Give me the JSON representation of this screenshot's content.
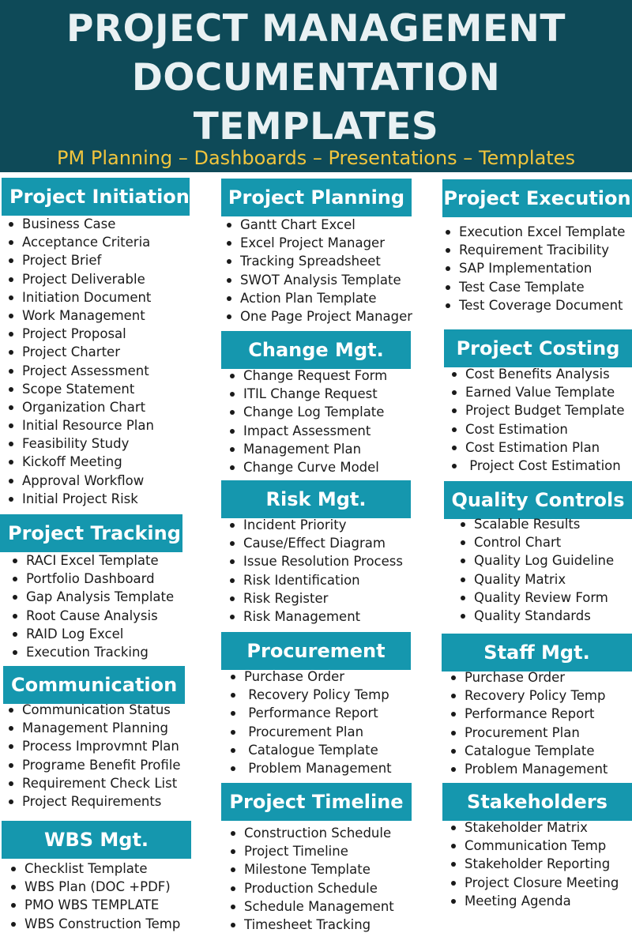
{
  "header": {
    "title_line1": "PROJECT MANAGEMENT",
    "title_line2": "DOCUMENTATION",
    "title_line3": "TEMPLATES",
    "subtitle": "PM Planning – Dashboards – Presentations – Templates"
  },
  "sections": {
    "project_initiation": {
      "title": "Project Initiation",
      "items": [
        "Business Case",
        "Acceptance Criteria",
        "Project Brief",
        "Project Deliverable",
        "Initiation Document",
        "Work Management",
        "Project Proposal",
        "Project Charter",
        "Project Assessment",
        "Scope Statement",
        "Organization Chart",
        "Initial Resource Plan",
        "Feasibility Study",
        "Kickoff Meeting",
        "Approval Workflow",
        "Initial Project Risk"
      ]
    },
    "project_tracking": {
      "title": "Project Tracking",
      "items": [
        "RACI Excel Template",
        "Portfolio Dashboard",
        "Gap Analysis Template",
        "Root Cause Analysis",
        "RAID Log Excel",
        "Execution Tracking"
      ]
    },
    "communication": {
      "title": "Communication",
      "items": [
        "Communication Status",
        "Management Planning",
        "Process Improvmnt Plan",
        "Programe Benefit Profile",
        "Requirement Check List",
        "Project Requirements"
      ]
    },
    "wbs_mgt": {
      "title": "WBS Mgt.",
      "items": [
        "Checklist Template",
        "WBS Plan (DOC +PDF)",
        "PMO WBS TEMPLATE",
        "WBS Construction Temp"
      ]
    },
    "project_planning": {
      "title": "Project Planning",
      "items": [
        "Gantt Chart Excel",
        "Excel Project Manager",
        "Tracking Spreadsheet",
        "SWOT Analysis Template",
        "Action Plan Template",
        "One Page Project Manager"
      ]
    },
    "change_mgt": {
      "title": "Change Mgt.",
      "items": [
        "Change Request Form",
        "ITIL Change Request",
        "Change Log Template",
        "Impact Assessment",
        "Management Plan",
        "Change Curve Model"
      ]
    },
    "risk_mgt": {
      "title": "Risk Mgt.",
      "items": [
        "Incident Priority",
        "Cause/Effect Diagram",
        "Issue Resolution Process",
        "Risk Identification",
        "Risk Register",
        "Risk Management"
      ]
    },
    "procurement": {
      "title": "Procurement",
      "items": [
        "Purchase Order",
        " Recovery Policy Temp",
        " Performance Report",
        " Procurement Plan",
        " Catalogue Template",
        " Problem Management"
      ]
    },
    "project_timeline": {
      "title": "Project Timeline",
      "items": [
        "Construction Schedule",
        "Project Timeline",
        "Milestone Template",
        "Production Schedule",
        "Schedule Management",
        "Timesheet Tracking"
      ]
    },
    "project_execution": {
      "title": "Project Execution",
      "items": [
        "Execution Excel Template",
        "Requirement Tracibility",
        "SAP Implementation",
        "Test Case Template",
        "Test Coverage Document"
      ]
    },
    "project_costing": {
      "title": "Project Costing",
      "items": [
        "Cost Benefits Analysis",
        "Earned Value Template",
        "Project Budget Template",
        "Cost Estimation",
        "Cost Estimation Plan",
        " Project Cost Estimation"
      ]
    },
    "quality_controls": {
      "title": "Quality Controls",
      "items": [
        "Scalable Results",
        "Control Chart",
        "Quality Log Guideline",
        "Quality Matrix",
        "Quality Review Form",
        "Quality Standards"
      ]
    },
    "staff_mgt": {
      "title": "Staff Mgt.",
      "items": [
        "Purchase Order",
        "Recovery Policy Temp",
        "Performance Report",
        "Procurement Plan",
        "Catalogue Template",
        "Problem Management"
      ]
    },
    "stakeholders": {
      "title": "Stakeholders",
      "items": [
        "Stakeholder Matrix",
        "Communication Temp",
        "Stakeholder Reporting",
        "Project Closure Meeting",
        "Meeting Agenda"
      ]
    }
  },
  "colors": {
    "header_bg": "#0e4a58",
    "title_text": "#e9f1f3",
    "subtitle_text": "#f2c53d",
    "section_head_bg": "#1597ae",
    "section_head_text": "#ffffff"
  }
}
